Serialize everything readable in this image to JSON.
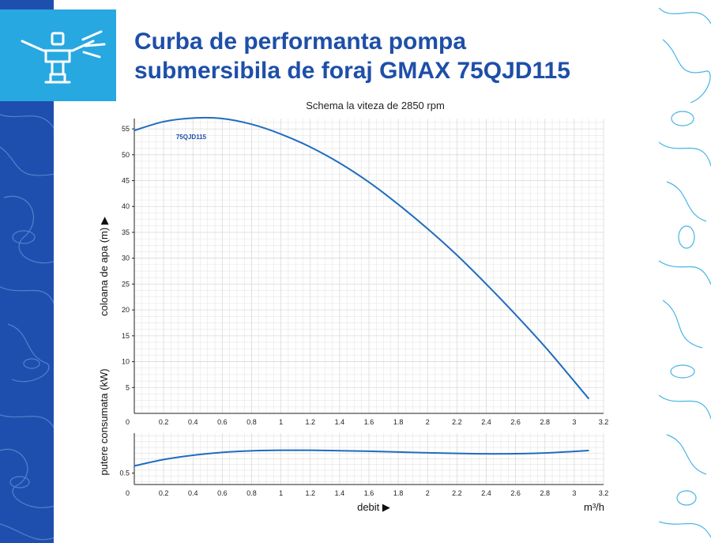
{
  "title_line1": "Curba de performanta pompa",
  "title_line2": "submersibila de foraj GMAX 75QJD115",
  "colors": {
    "brand_blue": "#1e4fa8",
    "accent_cyan": "#27a8e0",
    "curve": "#1f6cc0",
    "grid": "#d9d9d9"
  },
  "icon": "sprinkler-icon",
  "chart_data": [
    {
      "type": "line",
      "subtitle": "Schema la viteza de 2850 rpm",
      "ylabel": "coloana de apa (m) ▶",
      "xlim": [
        0,
        3.2
      ],
      "ylim": [
        0,
        57
      ],
      "x_ticks": [
        "0",
        "0.2",
        "0.4",
        "0.6",
        "0.8",
        "1",
        "1.2",
        "1.4",
        "1.6",
        "1.8",
        "2",
        "2.2",
        "2.4",
        "2.6",
        "2.8",
        "3",
        "3.2"
      ],
      "y_ticks": [
        "5",
        "10",
        "15",
        "20",
        "25",
        "30",
        "35",
        "40",
        "45",
        "50",
        "55"
      ],
      "series": [
        {
          "name": "75QJD115",
          "x": [
            0,
            0.2,
            0.4,
            0.6,
            0.8,
            1.0,
            1.2,
            1.4,
            1.6,
            1.8,
            2.0,
            2.2,
            2.4,
            2.6,
            2.8,
            3.0,
            3.1
          ],
          "y": [
            54.7,
            56.4,
            57.1,
            57.0,
            55.9,
            54.0,
            51.5,
            48.4,
            44.7,
            40.4,
            35.7,
            30.6,
            25.0,
            19.1,
            12.9,
            6.2,
            2.8
          ]
        }
      ],
      "grid": true
    },
    {
      "type": "line",
      "ylabel": "putere consumata (kW)",
      "xlabel": "debit ▶",
      "x_unit": "m³/h",
      "xlim": [
        0,
        3.2
      ],
      "ylim": [
        0.42,
        0.78
      ],
      "x_ticks": [
        "0",
        "0.2",
        "0.4",
        "0.6",
        "0.8",
        "1",
        "1.2",
        "1.4",
        "1.6",
        "1.8",
        "2",
        "2.2",
        "2.4",
        "2.6",
        "2.8",
        "3",
        "3.2"
      ],
      "y_ticks": [
        "0.5"
      ],
      "series": [
        {
          "x": [
            0,
            0.2,
            0.4,
            0.6,
            0.8,
            1.0,
            1.2,
            1.4,
            1.6,
            1.8,
            2.0,
            2.2,
            2.4,
            2.6,
            2.8,
            3.0,
            3.1
          ],
          "y": [
            0.55,
            0.595,
            0.625,
            0.645,
            0.656,
            0.66,
            0.66,
            0.657,
            0.653,
            0.648,
            0.642,
            0.638,
            0.635,
            0.636,
            0.641,
            0.652,
            0.658
          ]
        }
      ],
      "grid": true
    }
  ]
}
